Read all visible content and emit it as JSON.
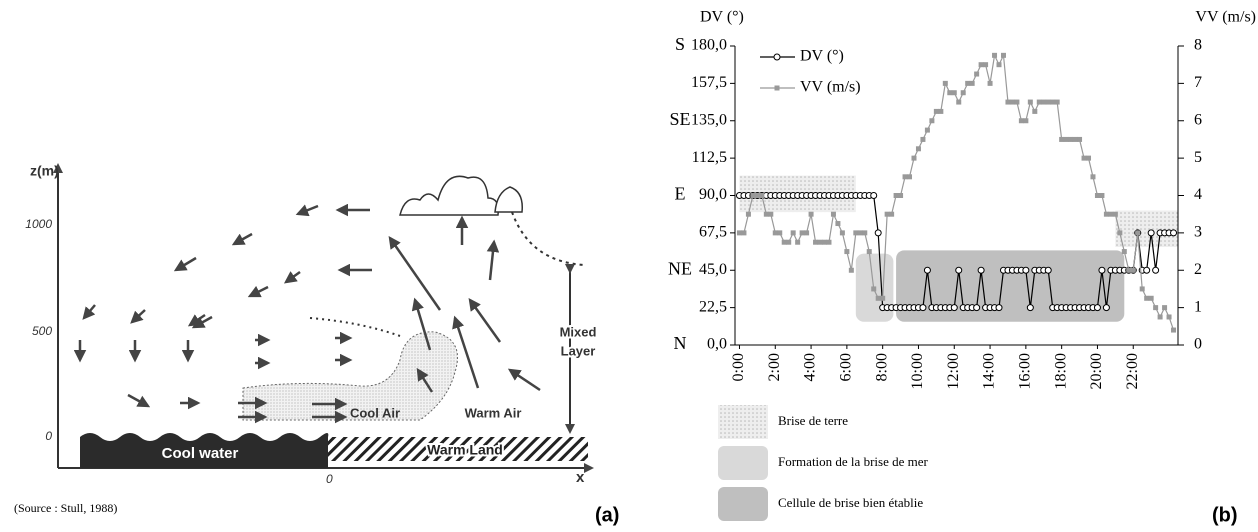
{
  "diagram": {
    "z_label": "z(m)",
    "z_ticks": [
      "1000",
      "500",
      "0"
    ],
    "x_label": "x",
    "x_origin": "0",
    "cool_water": "Cool water",
    "warm_land": "Warm Land",
    "cool_air": "Cool Air",
    "warm_air": "Warm Air",
    "mixed_layer": [
      "Mixed",
      "Layer"
    ],
    "source": "(Source : Stull, 1988)",
    "panel": "(a)"
  },
  "chart_data": {
    "type": "line",
    "panel": "(b)",
    "y_label": "DV (°)",
    "y2_label": "VV (m/s)",
    "x": [
      0,
      0.25,
      0.5,
      0.75,
      1,
      1.25,
      1.5,
      1.75,
      2,
      2.25,
      2.5,
      2.75,
      3,
      3.25,
      3.5,
      3.75,
      4,
      4.25,
      4.5,
      4.75,
      5,
      5.25,
      5.5,
      5.75,
      6,
      6.25,
      6.5,
      6.75,
      7,
      7.25,
      7.5,
      7.75,
      8,
      8.25,
      8.5,
      8.75,
      9,
      9.25,
      9.5,
      9.75,
      10,
      10.25,
      10.5,
      10.75,
      11,
      11.25,
      11.5,
      11.75,
      12,
      12.25,
      12.5,
      12.75,
      13,
      13.25,
      13.5,
      13.75,
      14,
      14.25,
      14.5,
      14.75,
      15,
      15.25,
      15.5,
      15.75,
      16,
      16.25,
      16.5,
      16.75,
      17,
      17.25,
      17.5,
      17.75,
      18,
      18.25,
      18.5,
      18.75,
      19,
      19.25,
      19.5,
      19.75,
      20,
      20.25,
      20.5,
      20.75,
      21,
      21.25,
      21.5,
      21.75,
      22,
      22.25,
      22.5,
      22.75,
      23,
      23.25,
      23.5,
      23.75,
      24,
      24.25
    ],
    "xlim": [
      -0.25,
      24.5
    ],
    "xticks": [
      {
        "value": 0,
        "label": "0:00"
      },
      {
        "value": 2,
        "label": "2:00"
      },
      {
        "value": 4,
        "label": "4:00"
      },
      {
        "value": 6,
        "label": "6:00"
      },
      {
        "value": 8,
        "label": "8:00"
      },
      {
        "value": 10,
        "label": "10:00"
      },
      {
        "value": 12,
        "label": "12:00"
      },
      {
        "value": 14,
        "label": "14:00"
      },
      {
        "value": 16,
        "label": "16:00"
      },
      {
        "value": 18,
        "label": "18:00"
      },
      {
        "value": 20,
        "label": "20:00"
      },
      {
        "value": 22,
        "label": "22:00"
      }
    ],
    "ylim": [
      0,
      180
    ],
    "yticks": [
      {
        "value": 0,
        "label": "0,0"
      },
      {
        "value": 22.5,
        "label": "22,5"
      },
      {
        "value": 45,
        "label": "45,0"
      },
      {
        "value": 67.5,
        "label": "67,5"
      },
      {
        "value": 90,
        "label": "90,0"
      },
      {
        "value": 112.5,
        "label": "112,5"
      },
      {
        "value": 135,
        "label": "135,0"
      },
      {
        "value": 157.5,
        "label": "157,5"
      },
      {
        "value": 180,
        "label": "180,0"
      }
    ],
    "ytick_names": [
      {
        "value": 0,
        "label": "N"
      },
      {
        "value": 45,
        "label": "NE"
      },
      {
        "value": 90,
        "label": "E"
      },
      {
        "value": 135,
        "label": "SE"
      },
      {
        "value": 180,
        "label": "S"
      }
    ],
    "y2lim": [
      0,
      8
    ],
    "y2ticks": [
      0,
      1,
      2,
      3,
      4,
      5,
      6,
      7,
      8
    ],
    "legend": "upper left",
    "grid": false,
    "series": [
      {
        "name": "DV (°)",
        "color": "#000000",
        "marker": "circle",
        "values": [
          90,
          90,
          90,
          90,
          90,
          90,
          90,
          90,
          90,
          90,
          90,
          90,
          90,
          90,
          90,
          90,
          90,
          90,
          90,
          90,
          90,
          90,
          90,
          90,
          90,
          90,
          90,
          90,
          90,
          90,
          90,
          67.5,
          22.5,
          22.5,
          22.5,
          22.5,
          22.5,
          22.5,
          22.5,
          22.5,
          22.5,
          22.5,
          45,
          22.5,
          22.5,
          22.5,
          22.5,
          22.5,
          22.5,
          45,
          22.5,
          22.5,
          22.5,
          22.5,
          45,
          22.5,
          22.5,
          22.5,
          22.5,
          45,
          45,
          45,
          45,
          45,
          45,
          22.5,
          45,
          45,
          45,
          45,
          22.5,
          22.5,
          22.5,
          22.5,
          22.5,
          22.5,
          22.5,
          22.5,
          22.5,
          22.5,
          22.5,
          45,
          22.5,
          45,
          45,
          45,
          45,
          45,
          45,
          67.5,
          45,
          45,
          67.5,
          45,
          67.5,
          67.5,
          67.5,
          67.5
        ]
      },
      {
        "name": "VV (m/s)",
        "color": "#999999",
        "marker": "square",
        "axis": "y2",
        "values": [
          3,
          3,
          3.5,
          4,
          4,
          4,
          3.5,
          3.5,
          3,
          3,
          2.75,
          2.75,
          3,
          2.75,
          3,
          3,
          3.5,
          2.75,
          2.75,
          2.75,
          2.75,
          3.5,
          3.25,
          3,
          2.5,
          2,
          3,
          3,
          3,
          2.5,
          1.5,
          1.25,
          1.25,
          3.5,
          3.5,
          4,
          4,
          4.5,
          4.5,
          5,
          5.25,
          5.5,
          5.75,
          6,
          6.25,
          6.25,
          7,
          6.75,
          6.75,
          6.5,
          6.75,
          7,
          7,
          7.25,
          7.5,
          7.5,
          7,
          7.75,
          7.5,
          7.75,
          6.5,
          6.5,
          6.5,
          6,
          6,
          6.5,
          6.25,
          6.5,
          6.5,
          6.5,
          6.5,
          6.5,
          5.5,
          5.5,
          5.5,
          5.5,
          5.5,
          5,
          5,
          4.5,
          4,
          4,
          3.5,
          3.5,
          3.5,
          3,
          2.5,
          2,
          2,
          3,
          1.5,
          1.25,
          1.25,
          1,
          0.75,
          1,
          0.75,
          0.4
        ]
      }
    ],
    "regions": [
      {
        "label": "Brise de terre",
        "style": "dotted",
        "color": "#e6e6e6",
        "spans": [
          {
            "x": [
              0,
              6.5
            ],
            "y": [
              80,
              102
            ]
          },
          {
            "x": [
              21,
              24.5
            ],
            "y": [
              59,
              81
            ]
          }
        ]
      },
      {
        "label": "Formation de la brise de mer",
        "style": "solid",
        "color": "#d9d9d9",
        "spans": [
          {
            "x": [
              6.5,
              8.6
            ],
            "y": [
              14,
              55
            ]
          }
        ]
      },
      {
        "label": "Cellule de brise bien établie",
        "style": "solid",
        "color": "#bfbfbf",
        "spans": [
          {
            "x": [
              8.75,
              21.5
            ],
            "y": [
              14,
              57
            ]
          }
        ]
      }
    ]
  }
}
